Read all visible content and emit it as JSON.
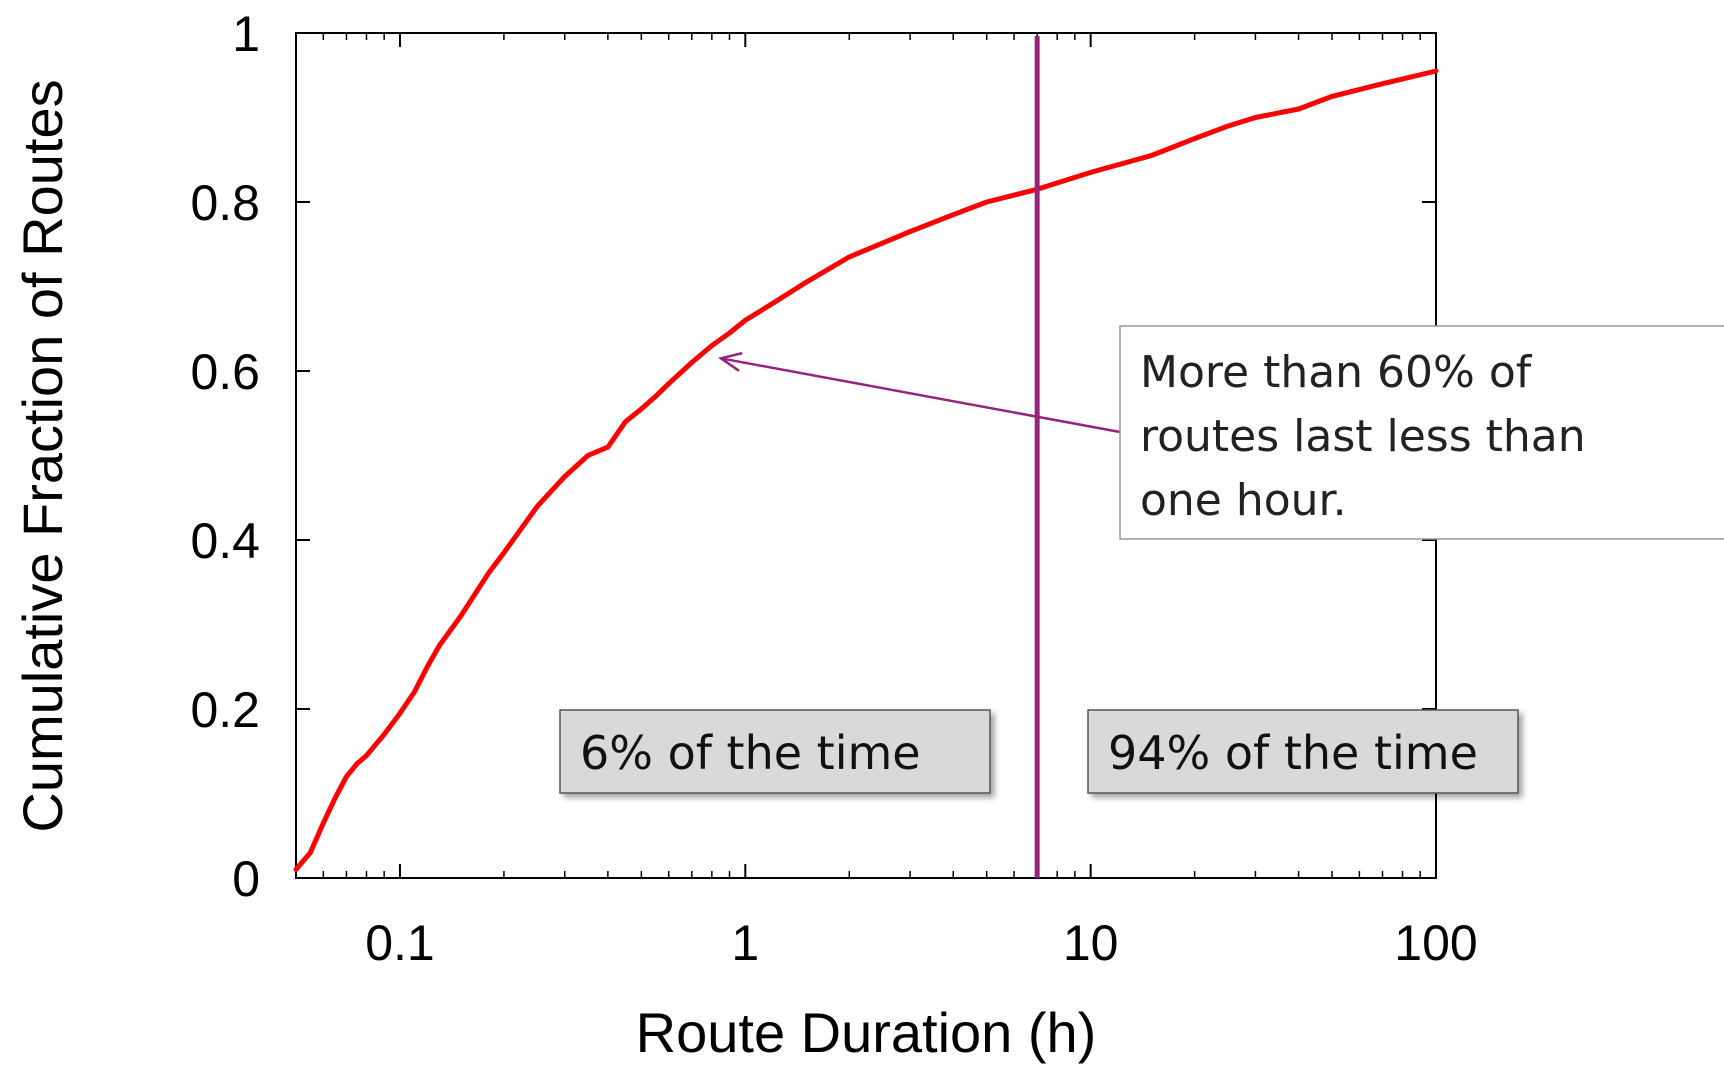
{
  "chart_data": {
    "type": "line",
    "xlabel": "Route Duration (h)",
    "ylabel": "Cumulative Fraction of Routes",
    "xscale": "log",
    "xlim": [
      0.05,
      100
    ],
    "ylim": [
      0,
      1
    ],
    "grid": false,
    "x_ticks": [
      {
        "value": 0.1,
        "label": "0.1"
      },
      {
        "value": 1,
        "label": "1"
      },
      {
        "value": 10,
        "label": "10"
      },
      {
        "value": 100,
        "label": "100"
      }
    ],
    "y_ticks": [
      {
        "value": 0,
        "label": "0"
      },
      {
        "value": 0.2,
        "label": "0.2"
      },
      {
        "value": 0.4,
        "label": "0.4"
      },
      {
        "value": 0.6,
        "label": "0.6"
      },
      {
        "value": 0.8,
        "label": "0.8"
      },
      {
        "value": 1,
        "label": "1"
      }
    ],
    "series": [
      {
        "color": "#ff0000",
        "x": [
          0.05,
          0.055,
          0.06,
          0.065,
          0.07,
          0.075,
          0.08,
          0.09,
          0.1,
          0.11,
          0.12,
          0.13,
          0.15,
          0.18,
          0.2,
          0.25,
          0.3,
          0.35,
          0.4,
          0.45,
          0.5,
          0.55,
          0.6,
          0.7,
          0.8,
          0.9,
          1,
          1.2,
          1.5,
          2,
          3,
          4,
          5,
          7,
          10,
          15,
          20,
          25,
          30,
          40,
          50,
          70,
          100
        ],
        "y": [
          0.01,
          0.03,
          0.065,
          0.095,
          0.12,
          0.135,
          0.145,
          0.17,
          0.195,
          0.22,
          0.25,
          0.275,
          0.31,
          0.36,
          0.385,
          0.44,
          0.475,
          0.5,
          0.51,
          0.54,
          0.555,
          0.57,
          0.585,
          0.61,
          0.63,
          0.645,
          0.66,
          0.68,
          0.705,
          0.735,
          0.765,
          0.785,
          0.8,
          0.815,
          0.835,
          0.855,
          0.875,
          0.89,
          0.9,
          0.91,
          0.925,
          0.94,
          0.955
        ]
      }
    ],
    "vline": {
      "x": 7,
      "color": "#96237d"
    },
    "annotations": [
      {
        "lines": [
          "More than 60% of",
          "routes last less than",
          "one hour."
        ],
        "points_to": {
          "x": 0.85,
          "y": 0.615
        }
      },
      {
        "text": "6% of the time",
        "position": "bottom, left of vertical line"
      },
      {
        "text": "94% of the time",
        "position": "bottom, right of vertical line"
      }
    ]
  }
}
